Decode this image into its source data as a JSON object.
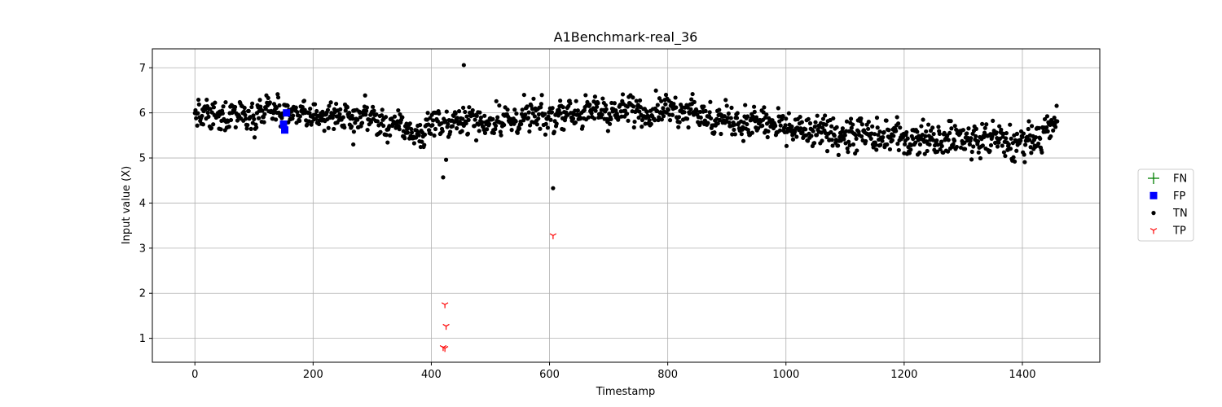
{
  "chart_data": {
    "type": "scatter",
    "title": "A1Benchmark-real_36",
    "xlabel": "Timestamp",
    "ylabel": "Input value (X)",
    "xlim": [
      -72,
      1531
    ],
    "ylim": [
      0.47,
      7.42
    ],
    "xticks": [
      0,
      200,
      400,
      600,
      800,
      1000,
      1200,
      1400
    ],
    "yticks": [
      1,
      2,
      3,
      4,
      5,
      6,
      7
    ],
    "grid": true,
    "legend_position": "right",
    "colors": {
      "FN": "#008000",
      "FP": "#0000ff",
      "TN": "#000000",
      "TP": "#ff0000"
    },
    "series": [
      {
        "name": "FN",
        "marker": "plus",
        "x": [],
        "y": []
      },
      {
        "name": "FP",
        "marker": "square",
        "x": [
          150,
          152,
          155
        ],
        "y": [
          5.75,
          5.62,
          6.0
        ]
      },
      {
        "name": "TN",
        "marker": "dot",
        "outliers": {
          "x": [
            268,
            420,
            425,
            455,
            606
          ],
          "y": [
            5.3,
            4.57,
            4.96,
            7.06,
            4.33
          ]
        },
        "generator": {
          "count": 1460,
          "skip_x": [
            150,
            152,
            155,
            420,
            423,
            425,
            606
          ],
          "min_y": 4.6,
          "max_y": 6.6,
          "segments": [
            {
              "x": [
                0,
                150
              ],
              "mean": [
                5.9,
                6.05
              ],
              "amp": 0.26
            },
            {
              "x": [
                150,
                300
              ],
              "mean": [
                5.95,
                5.9
              ],
              "amp": 0.24
            },
            {
              "x": [
                300,
                390
              ],
              "mean": [
                5.85,
                5.5
              ],
              "amp": 0.25
            },
            {
              "x": [
                390,
                480
              ],
              "mean": [
                5.75,
                5.85
              ],
              "amp": 0.25
            },
            {
              "x": [
                480,
                620
              ],
              "mean": [
                5.8,
                5.95
              ],
              "amp": 0.28
            },
            {
              "x": [
                620,
                850
              ],
              "mean": [
                6.0,
                6.1
              ],
              "amp": 0.26
            },
            {
              "x": [
                850,
                1000
              ],
              "mean": [
                5.9,
                5.7
              ],
              "amp": 0.3
            },
            {
              "x": [
                1000,
                1200
              ],
              "mean": [
                5.6,
                5.45
              ],
              "amp": 0.3
            },
            {
              "x": [
                1200,
                1380
              ],
              "mean": [
                5.45,
                5.4
              ],
              "amp": 0.3
            },
            {
              "x": [
                1380,
                1460
              ],
              "mean": [
                5.2,
                5.75
              ],
              "amp": 0.3
            }
          ]
        }
      },
      {
        "name": "TP",
        "marker": "tri_down",
        "x": [
          420,
          423,
          423,
          425,
          606
        ],
        "y": [
          0.8,
          0.78,
          1.75,
          1.27,
          3.28
        ]
      }
    ]
  }
}
